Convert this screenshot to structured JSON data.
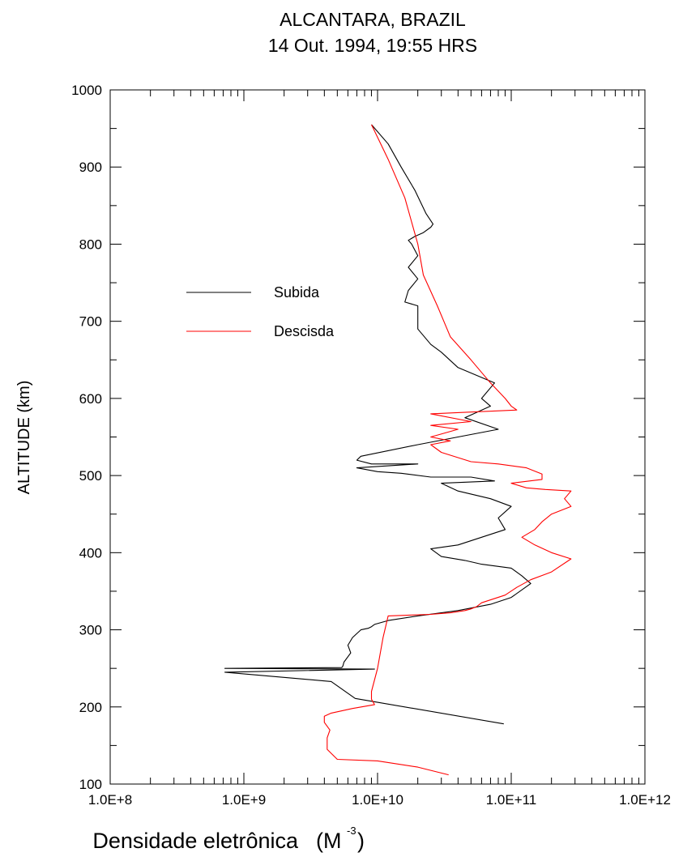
{
  "chart_data": {
    "type": "line",
    "title": "ALCANTARA, BRAZIL",
    "subtitle": "14 Out. 1994, 19:55 HRS",
    "xlabel": "Densidade eletrônica",
    "xlabel_unit_open": "(M",
    "xlabel_unit_exp": "-3",
    "xlabel_unit_close": " )",
    "ylabel": "ALTITUDE (km)",
    "xscale": "log",
    "xlim": [
      100000000,
      1000000000000
    ],
    "ylim": [
      100,
      1000
    ],
    "x_tick_labels": [
      "1.0E+8",
      "1.0E+9",
      "1.0E+10",
      "1.0E+11",
      "1.0E+12"
    ],
    "y_tick_labels": [
      "100",
      "200",
      "300",
      "400",
      "500",
      "600",
      "700",
      "800",
      "900",
      "1000"
    ],
    "legend_position": "upper-left-inside",
    "series": [
      {
        "name": "Subida",
        "color": "#000000",
        "x": [
          88000000000,
          6800000000,
          4500000000,
          720000000,
          9500000000,
          720000000,
          5400000000,
          5500000000,
          5600000000,
          6300000000,
          6000000000,
          6500000000,
          7500000000,
          8500000000,
          9000000000,
          9500000000,
          12000000000,
          20000000000,
          40000000000,
          70000000000,
          100000000000,
          140000000000,
          120000000000,
          100000000000,
          60000000000,
          45000000000,
          30000000000,
          25000000000,
          40000000000,
          60000000000,
          90000000000,
          80000000000,
          100000000000,
          70000000000,
          40000000000,
          30000000000,
          75000000000,
          50000000000,
          25000000000,
          15000000000,
          10000000000,
          7000000000,
          20000000000,
          9000000000,
          7000000000,
          7500000000,
          20000000000,
          40000000000,
          80000000000,
          45000000000,
          70000000000,
          60000000000,
          75000000000,
          40000000000,
          30000000000,
          25000000000,
          20000000000,
          20000000000,
          16000000000,
          17000000000,
          20000000000,
          17000000000,
          20000000000,
          18000000000,
          17000000000,
          19000000000,
          22000000000,
          25000000000,
          26000000000,
          23000000000,
          19000000000,
          15000000000,
          12000000000,
          9000000000
        ],
        "y": [
          178,
          211,
          233,
          245,
          249,
          250,
          251,
          253,
          258,
          270,
          280,
          290,
          300,
          302,
          304,
          307,
          312,
          318,
          325,
          333,
          342,
          360,
          370,
          380,
          385,
          390,
          395,
          405,
          410,
          420,
          430,
          445,
          460,
          470,
          480,
          490,
          493,
          498,
          498,
          503,
          505,
          510,
          515,
          515,
          520,
          525,
          540,
          550,
          560,
          575,
          590,
          600,
          620,
          640,
          660,
          670,
          690,
          720,
          725,
          740,
          755,
          770,
          785,
          800,
          805,
          810,
          815,
          822,
          826,
          840,
          870,
          900,
          930,
          955
        ]
      },
      {
        "name": "Descisda",
        "color": "#ff0000",
        "x": [
          34000000000,
          20000000000,
          10000000000,
          5000000000,
          4200000000,
          4200000000,
          4400000000,
          4000000000,
          4000000000,
          4500000000,
          6500000000,
          9500000000,
          9000000000,
          9000000000,
          10000000000,
          11000000000,
          12000000000,
          25000000000,
          35000000000,
          45000000000,
          50000000000,
          55000000000,
          60000000000,
          90000000000,
          110000000000,
          140000000000,
          180000000000,
          200000000000,
          280000000000,
          200000000000,
          150000000000,
          120000000000,
          150000000000,
          170000000000,
          200000000000,
          280000000000,
          250000000000,
          280000000000,
          180000000000,
          130000000000,
          100000000000,
          170000000000,
          170000000000,
          130000000000,
          80000000000,
          50000000000,
          30000000000,
          25000000000,
          35000000000,
          25000000000,
          40000000000,
          25000000000,
          50000000000,
          25000000000,
          110000000000,
          100000000000,
          90000000000,
          70000000000,
          50000000000,
          35000000000,
          28000000000,
          22000000000,
          20000000000,
          16000000000,
          12000000000,
          9000000000
        ],
        "y": [
          112,
          122,
          130,
          132,
          145,
          160,
          170,
          180,
          188,
          192,
          198,
          203,
          210,
          220,
          250,
          290,
          318,
          320,
          322,
          325,
          327,
          330,
          335,
          345,
          355,
          365,
          372,
          375,
          392,
          400,
          410,
          420,
          430,
          440,
          450,
          460,
          470,
          480,
          482,
          484,
          490,
          495,
          502,
          510,
          515,
          518,
          530,
          540,
          545,
          550,
          560,
          565,
          570,
          580,
          585,
          590,
          600,
          620,
          650,
          680,
          720,
          760,
          800,
          860,
          910,
          955
        ]
      }
    ]
  }
}
